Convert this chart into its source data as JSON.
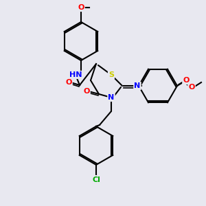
{
  "bg_color": "#e8e8f0",
  "atom_colors": {
    "C": "#000000",
    "N": "#0000ff",
    "O": "#ff0000",
    "S": "#cccc00",
    "Cl": "#00aa00",
    "H": "#888888"
  },
  "title": "",
  "figsize": [
    3.0,
    3.0
  ],
  "dpi": 100
}
